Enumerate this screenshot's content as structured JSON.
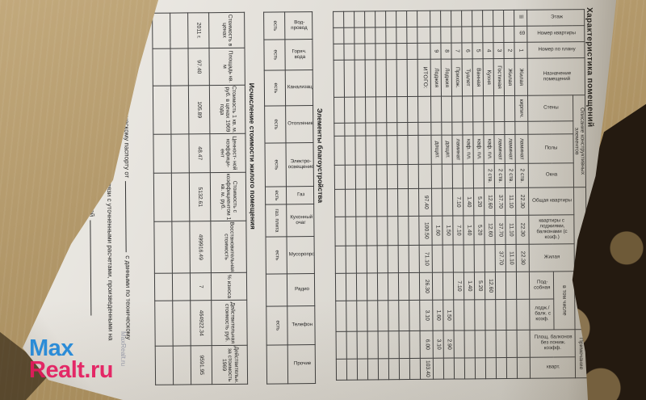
{
  "watermark": {
    "part1": "Max",
    "part2": "Realt.ru",
    "part1_color": "#1d86d8",
    "part2_color": "#e51a5e",
    "side_text": "MaxRealt.ru"
  },
  "document": {
    "title": "Характеристика помещений",
    "main_table": {
      "group_headers": {
        "elements": "Описание конструктивных элементов",
        "area": "Площадь кв. м",
        "in_total": "в том числе",
        "note": "Примечание"
      },
      "col_headers": [
        "Этаж",
        "Номер квартиры",
        "Номер по плану",
        "Назначение помещений",
        "Стены",
        "",
        "Полы",
        "Окна",
        "Общая квартиры",
        "квартиры с лоджиями, балконами (с коэф.)",
        "Жилая",
        "Под- собная",
        "лодж./ балк. с коэф.",
        "Площ. балконов без пониж. коэфф.",
        "кварт."
      ],
      "rows": [
        [
          "III",
          "69",
          "1",
          "Жилая",
          "кирпич.",
          "",
          "ламинат",
          "2 ств.",
          "22.30",
          "22.30",
          "22.30",
          "",
          "",
          "",
          ""
        ],
        [
          "",
          "",
          "2",
          "Жилая",
          "",
          "",
          "ламинат",
          "2 ств.",
          "11.10",
          "11.10",
          "11.10",
          "",
          "",
          "",
          ""
        ],
        [
          "",
          "",
          "3",
          "Гостиная",
          "",
          "",
          "ламинат",
          "2 ств.",
          "37.70",
          "37.70",
          "37.70",
          "",
          "",
          "",
          ""
        ],
        [
          "",
          "",
          "4",
          "Кухня",
          "",
          "",
          "каф. пл.",
          "2 ств.",
          "12.60",
          "12.60",
          "",
          "12.60",
          "",
          "",
          ""
        ],
        [
          "",
          "",
          "5",
          "Ванная",
          "",
          "",
          "каф. пл.",
          "",
          "5.20",
          "5.20",
          "",
          "5.20",
          "",
          "",
          ""
        ],
        [
          "",
          "",
          "6",
          "Туалет",
          "",
          "",
          "каф. пл.",
          "",
          "1.40",
          "1.40",
          "",
          "1.40",
          "",
          "",
          ""
        ],
        [
          "",
          "",
          "7",
          "Прихож.",
          "",
          "",
          "ламинат",
          "",
          "7.10",
          "7.10",
          "",
          "7.10",
          "",
          "",
          ""
        ],
        [
          "",
          "",
          "8",
          "Лоджия",
          "",
          "",
          "дощат.",
          "",
          "",
          "1.50",
          "",
          "",
          "1.50",
          "2.90",
          ""
        ],
        [
          "",
          "",
          "9",
          "Лоджия",
          "",
          "",
          "дощат.",
          "",
          "",
          "1.60",
          "",
          "",
          "1.60",
          "3.10",
          ""
        ]
      ],
      "total_row": [
        "",
        "",
        "",
        "ИТОГО:",
        "",
        "",
        "",
        "",
        "97.40",
        "100.50",
        "71.10",
        "26.30",
        "3.10",
        "6.00",
        "103.40"
      ]
    },
    "amenities": {
      "title": "Элементы благоустройства",
      "columns": [
        {
          "label": "Вод- провод",
          "value": "есть"
        },
        {
          "label": "Горяч. вода",
          "value": "есть"
        },
        {
          "label": "Канализация",
          "value": "есть"
        },
        {
          "label": "Отопление",
          "value": "есть"
        },
        {
          "label": "Электро- освещение",
          "value": "есть"
        },
        {
          "label": "Газ",
          "value": "есть"
        },
        {
          "label": "Кухонный очаг",
          "value": "газ. плита"
        },
        {
          "label": "Мусоропровод",
          "value": "есть"
        },
        {
          "label": "Радио",
          "value": ""
        },
        {
          "label": "Телефон",
          "value": "есть"
        },
        {
          "label": "Прочие",
          "value": ""
        }
      ]
    },
    "valuation": {
      "title": "Исчисление стоимости жилого помещения",
      "columns": [
        {
          "label": "Стоимость в ценах",
          "value": "2011 г."
        },
        {
          "label": "Площадь кв. м",
          "value": "97.40"
        },
        {
          "label": "Стоимость 1 кв. м. руб. в ценах 1969 года",
          "value": "105.89"
        },
        {
          "label": "Ценност- ной коэффици- ент",
          "value": "48.47"
        },
        {
          "label": "Стоимость с коэффициентом 1 кв. м. руб.",
          "value": "5132.61"
        },
        {
          "label": "Восстановительная стоимость",
          "value": "499916.49"
        },
        {
          "label": "% износа",
          "value": "7"
        },
        {
          "label": "Действительная стоимость руб.",
          "value": "464922.34"
        },
        {
          "label": "Действительн. за стоимость 1969",
          "value": "9591.95"
        }
      ]
    },
    "notes": [
      {
        "pre": "Расхождение в площади по техническому паспорту от",
        "tail": "с данными по техническому"
      },
      {
        "pre": "паспорту от",
        "tail": "возникло в связи с уточненными расчетами, произведенными на"
      },
      {
        "pre": "основании результатов технической инвентаризации, проведенной",
        "tail": ""
      }
    ]
  }
}
